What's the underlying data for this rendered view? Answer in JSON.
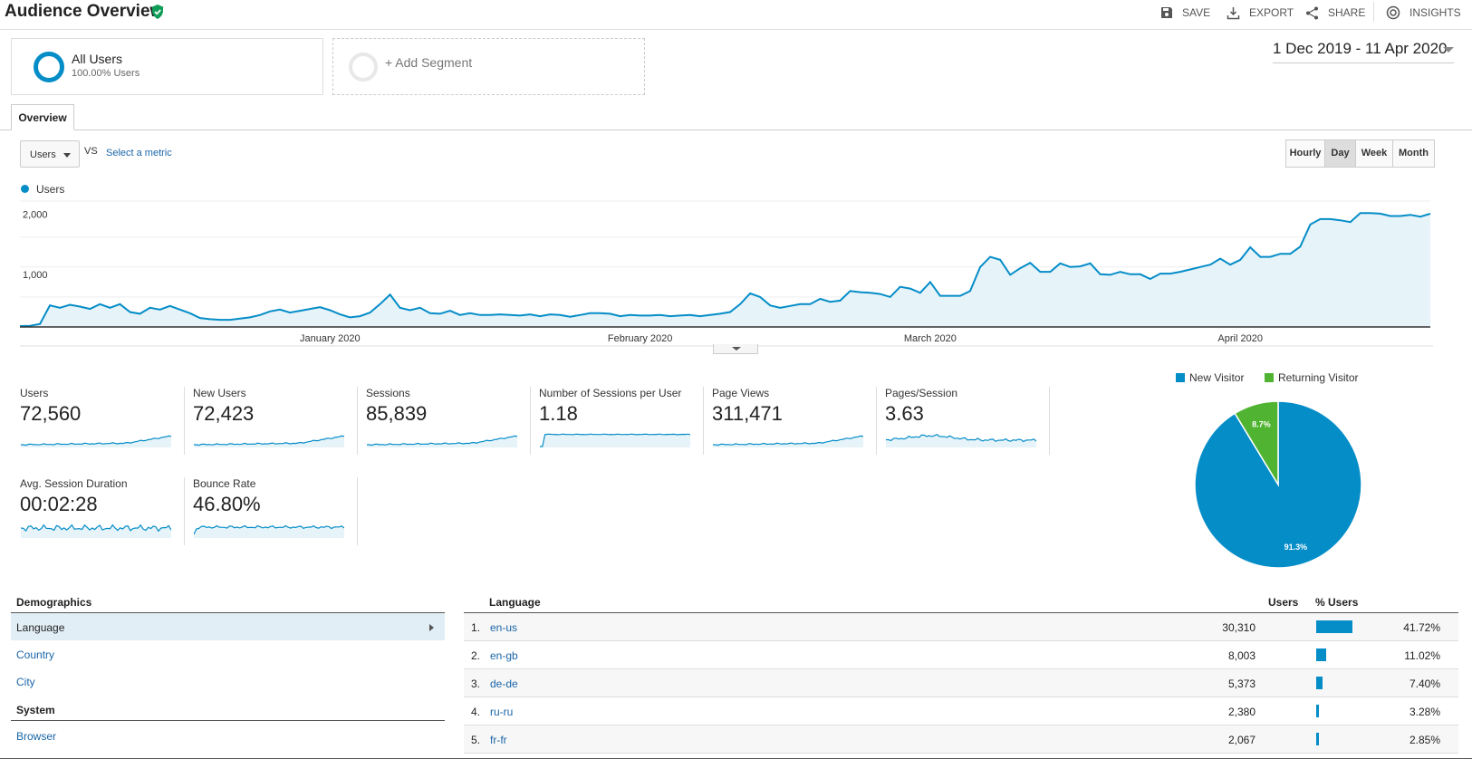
{
  "header": {
    "title": "Audience Overview",
    "actions": {
      "save": "SAVE",
      "export": "EXPORT",
      "share": "SHARE",
      "insights": "INSIGHTS"
    }
  },
  "segments": {
    "all_users_title": "All Users",
    "all_users_sub": "100.00% Users",
    "add_segment": "+ Add Segment"
  },
  "date_range": "1 Dec 2019 - 11 Apr 2020",
  "tab": "Overview",
  "metric_selector": {
    "value": "Users",
    "vs": "VS",
    "select_metric": "Select a metric"
  },
  "granularity": {
    "hourly": "Hourly",
    "day": "Day",
    "week": "Week",
    "month": "Month",
    "active": "Day"
  },
  "chart_data": [
    {
      "type": "area",
      "legend": [
        "Users"
      ],
      "y_ticks": [
        "2,000",
        "1,000"
      ],
      "y_tick_values": [
        2000,
        1000
      ],
      "x_ticks": [
        "January 2020",
        "February 2020",
        "March 2020",
        "April 2020"
      ],
      "x_tick_days": [
        31,
        62,
        91,
        122
      ],
      "ylim": [
        0,
        2100
      ],
      "x_start": "2019-12-01",
      "x_end": "2020-04-11",
      "series": [
        {
          "name": "Users",
          "values": [
            15,
            20,
            50,
            360,
            320,
            370,
            340,
            300,
            380,
            320,
            380,
            250,
            220,
            320,
            290,
            350,
            290,
            230,
            150,
            130,
            120,
            120,
            140,
            160,
            200,
            260,
            290,
            240,
            270,
            300,
            330,
            280,
            210,
            160,
            180,
            240,
            380,
            540,
            320,
            280,
            320,
            230,
            220,
            270,
            200,
            230,
            200,
            200,
            210,
            200,
            190,
            210,
            180,
            210,
            200,
            170,
            200,
            230,
            230,
            220,
            180,
            200,
            190,
            190,
            200,
            180,
            190,
            200,
            180,
            200,
            220,
            250,
            380,
            560,
            500,
            360,
            320,
            350,
            380,
            380,
            470,
            420,
            440,
            600,
            580,
            570,
            550,
            500,
            670,
            640,
            570,
            750,
            520,
            520,
            520,
            600,
            1000,
            1170,
            1120,
            870,
            980,
            1070,
            920,
            920,
            1060,
            1000,
            1010,
            1060,
            880,
            870,
            920,
            880,
            880,
            800,
            890,
            890,
            920,
            960,
            1000,
            1040,
            1140,
            1040,
            1120,
            1330,
            1170,
            1170,
            1220,
            1220,
            1340,
            1710,
            1800,
            1800,
            1780,
            1750,
            1900,
            1900,
            1890,
            1850,
            1850,
            1870,
            1840,
            1890
          ]
        }
      ]
    },
    {
      "type": "pie",
      "legend": [
        "New Visitor",
        "Returning Visitor"
      ],
      "values": [
        91.3,
        8.7
      ],
      "labels": [
        "91.3%",
        "8.7%"
      ],
      "colors": [
        "#058dc7",
        "#50b432"
      ]
    }
  ],
  "metrics": [
    {
      "name": "Users",
      "value": "72,560",
      "shape": "rising"
    },
    {
      "name": "New Users",
      "value": "72,423",
      "shape": "rising"
    },
    {
      "name": "Sessions",
      "value": "85,839",
      "shape": "rising"
    },
    {
      "name": "Number of Sessions per User",
      "value": "1.18",
      "shape": "flat-step"
    },
    {
      "name": "Page Views",
      "value": "311,471",
      "shape": "rising"
    },
    {
      "name": "Pages/Session",
      "value": "3.63",
      "shape": "hump"
    },
    {
      "name": "Avg. Session Duration",
      "value": "00:02:28",
      "shape": "noisy"
    },
    {
      "name": "Bounce Rate",
      "value": "46.80%",
      "shape": "flat-step-noisy"
    }
  ],
  "demographics": {
    "heading": "Demographics",
    "items": [
      "Language",
      "Country",
      "City"
    ],
    "system_heading": "System",
    "system_items": [
      "Browser"
    ]
  },
  "table": {
    "col_language": "Language",
    "col_users": "Users",
    "col_pct": "% Users",
    "rows": [
      {
        "rank": "1.",
        "language": "en-us",
        "users": "30,310",
        "pct": "41.72%",
        "share": 41.72
      },
      {
        "rank": "2.",
        "language": "en-gb",
        "users": "8,003",
        "pct": "11.02%",
        "share": 11.02
      },
      {
        "rank": "3.",
        "language": "de-de",
        "users": "5,373",
        "pct": "7.40%",
        "share": 7.4
      },
      {
        "rank": "4.",
        "language": "ru-ru",
        "users": "2,380",
        "pct": "3.28%",
        "share": 3.28
      },
      {
        "rank": "5.",
        "language": "fr-fr",
        "users": "2,067",
        "pct": "2.85%",
        "share": 2.85
      }
    ]
  },
  "colors": {
    "accent": "#058dc7",
    "returning": "#50b432",
    "link": "#1a65a8"
  }
}
